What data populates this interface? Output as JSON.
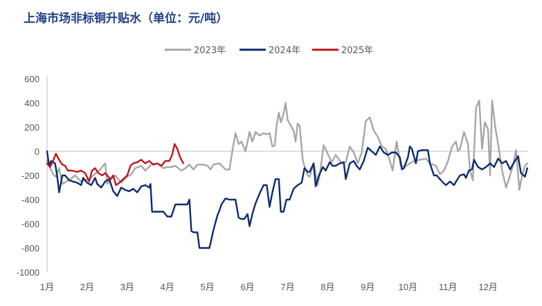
{
  "chart_data": {
    "type": "line",
    "title": "上海市场非标铜升贴水（单位：元/吨）",
    "xlabel": "",
    "ylabel": "",
    "ylim": [
      -1000,
      600
    ],
    "yticks": [
      "600",
      "400",
      "200",
      "0",
      "-200",
      "-400",
      "-600",
      "-800",
      "-1000"
    ],
    "xticks": [
      "1月",
      "2月",
      "3月",
      "4月",
      "5月",
      "6月",
      "7月",
      "8月",
      "9月",
      "10月",
      "11月",
      "12月"
    ],
    "grid": false,
    "legend_position": "top-center",
    "series": [
      {
        "name": "2023年",
        "color": "#a6a6a6",
        "points": [
          [
            1.0,
            -80
          ],
          [
            1.08,
            -140
          ],
          [
            1.15,
            -190
          ],
          [
            1.22,
            -210
          ],
          [
            1.3,
            -140
          ],
          [
            1.38,
            -270
          ],
          [
            1.48,
            -250
          ],
          [
            1.58,
            -230
          ],
          [
            1.7,
            -200
          ],
          [
            1.85,
            -250
          ],
          [
            1.95,
            -240
          ],
          [
            2.05,
            -230
          ],
          [
            2.15,
            -200
          ],
          [
            2.3,
            -160
          ],
          [
            2.45,
            -100
          ],
          [
            2.5,
            -270
          ],
          [
            2.6,
            -230
          ],
          [
            2.7,
            -200
          ],
          [
            2.85,
            -260
          ],
          [
            3.0,
            -210
          ],
          [
            3.1,
            -190
          ],
          [
            3.2,
            -140
          ],
          [
            3.35,
            -120
          ],
          [
            3.45,
            -160
          ],
          [
            3.6,
            -110
          ],
          [
            3.75,
            -100
          ],
          [
            3.9,
            -140
          ],
          [
            4.0,
            -130
          ],
          [
            4.1,
            -130
          ],
          [
            4.2,
            -120
          ],
          [
            4.35,
            -160
          ],
          [
            4.45,
            -140
          ],
          [
            4.55,
            -110
          ],
          [
            4.65,
            -150
          ],
          [
            4.75,
            -110
          ],
          [
            4.9,
            -110
          ],
          [
            5.0,
            -120
          ],
          [
            5.08,
            -150
          ],
          [
            5.15,
            -110
          ],
          [
            5.3,
            -100
          ],
          [
            5.45,
            -150
          ],
          [
            5.55,
            -150
          ],
          [
            5.62,
            0
          ],
          [
            5.7,
            150
          ],
          [
            5.78,
            60
          ],
          [
            5.85,
            80
          ],
          [
            5.95,
            0
          ],
          [
            6.0,
            80
          ],
          [
            6.05,
            160
          ],
          [
            6.12,
            80
          ],
          [
            6.2,
            160
          ],
          [
            6.3,
            130
          ],
          [
            6.4,
            150
          ],
          [
            6.48,
            140
          ],
          [
            6.55,
            150
          ],
          [
            6.62,
            40
          ],
          [
            6.68,
            50
          ],
          [
            6.72,
            200
          ],
          [
            6.78,
            320
          ],
          [
            6.83,
            240
          ],
          [
            6.9,
            310
          ],
          [
            6.95,
            400
          ],
          [
            7.0,
            260
          ],
          [
            7.15,
            170
          ],
          [
            7.2,
            80
          ],
          [
            7.25,
            230
          ],
          [
            7.3,
            210
          ],
          [
            7.38,
            -80
          ],
          [
            7.45,
            -150
          ],
          [
            7.5,
            -200
          ],
          [
            7.55,
            -210
          ],
          [
            7.65,
            -100
          ],
          [
            7.75,
            -280
          ],
          [
            7.8,
            -200
          ],
          [
            7.9,
            50
          ],
          [
            8.0,
            -20
          ],
          [
            8.1,
            -90
          ],
          [
            8.2,
            -30
          ],
          [
            8.35,
            -100
          ],
          [
            8.45,
            -90
          ],
          [
            8.55,
            40
          ],
          [
            8.65,
            -10
          ],
          [
            8.75,
            -100
          ],
          [
            8.85,
            -10
          ],
          [
            8.95,
            250
          ],
          [
            9.05,
            280
          ],
          [
            9.15,
            170
          ],
          [
            9.25,
            120
          ],
          [
            9.35,
            40
          ],
          [
            9.45,
            20
          ],
          [
            9.55,
            -80
          ],
          [
            9.62,
            -160
          ],
          [
            9.72,
            80
          ],
          [
            9.82,
            -120
          ],
          [
            9.92,
            -130
          ],
          [
            10.05,
            -100
          ],
          [
            10.15,
            -80
          ],
          [
            10.3,
            -70
          ],
          [
            10.45,
            -60
          ],
          [
            10.55,
            -100
          ],
          [
            10.7,
            -120
          ],
          [
            10.8,
            -190
          ],
          [
            10.9,
            -160
          ],
          [
            11.0,
            -80
          ],
          [
            11.1,
            40
          ],
          [
            11.2,
            80
          ],
          [
            11.25,
            0
          ],
          [
            11.3,
            20
          ],
          [
            11.4,
            160
          ],
          [
            11.5,
            60
          ],
          [
            11.55,
            -160
          ],
          [
            11.62,
            -240
          ],
          [
            11.7,
            360
          ],
          [
            11.78,
            420
          ],
          [
            11.85,
            20
          ],
          [
            11.92,
            240
          ],
          [
            12.0,
            180
          ],
          [
            12.05,
            -200
          ],
          [
            12.1,
            420
          ],
          [
            12.18,
            200
          ],
          [
            12.25,
            60
          ],
          [
            12.35,
            -160
          ],
          [
            12.45,
            -300
          ],
          [
            12.55,
            -200
          ],
          [
            12.62,
            -120
          ],
          [
            12.7,
            10
          ],
          [
            12.78,
            -320
          ],
          [
            12.85,
            -200
          ],
          [
            12.92,
            -120
          ],
          [
            12.98,
            -100
          ]
        ]
      },
      {
        "name": "2024年",
        "color": "#0b2b6f",
        "points": [
          [
            1.0,
            0
          ],
          [
            1.05,
            -120
          ],
          [
            1.1,
            -80
          ],
          [
            1.2,
            -100
          ],
          [
            1.25,
            -200
          ],
          [
            1.3,
            -340
          ],
          [
            1.38,
            -200
          ],
          [
            1.45,
            -200
          ],
          [
            1.55,
            -240
          ],
          [
            1.65,
            -250
          ],
          [
            1.75,
            -260
          ],
          [
            1.85,
            -280
          ],
          [
            1.9,
            -220
          ],
          [
            2.0,
            -260
          ],
          [
            2.1,
            -280
          ],
          [
            2.2,
            -220
          ],
          [
            2.25,
            -270
          ],
          [
            2.35,
            -300
          ],
          [
            2.45,
            -250
          ],
          [
            2.55,
            -230
          ],
          [
            2.65,
            -330
          ],
          [
            2.75,
            -370
          ],
          [
            2.85,
            -300
          ],
          [
            2.95,
            -320
          ],
          [
            3.05,
            -330
          ],
          [
            3.15,
            -310
          ],
          [
            3.25,
            -340
          ],
          [
            3.35,
            -290
          ],
          [
            3.45,
            -280
          ],
          [
            3.55,
            -300
          ],
          [
            3.58,
            -270
          ],
          [
            3.62,
            -500
          ],
          [
            3.75,
            -500
          ],
          [
            3.9,
            -500
          ],
          [
            4.0,
            -540
          ],
          [
            4.1,
            -540
          ],
          [
            4.2,
            -440
          ],
          [
            4.3,
            -440
          ],
          [
            4.4,
            -440
          ],
          [
            4.5,
            -440
          ],
          [
            4.55,
            -400
          ],
          [
            4.6,
            -660
          ],
          [
            4.65,
            -670
          ],
          [
            4.75,
            -670
          ],
          [
            4.8,
            -800
          ],
          [
            4.9,
            -800
          ],
          [
            5.05,
            -800
          ],
          [
            5.15,
            -650
          ],
          [
            5.25,
            -530
          ],
          [
            5.3,
            -490
          ],
          [
            5.35,
            -440
          ],
          [
            5.45,
            -390
          ],
          [
            5.55,
            -400
          ],
          [
            5.7,
            -400
          ],
          [
            5.78,
            -550
          ],
          [
            5.85,
            -560
          ],
          [
            5.92,
            -560
          ],
          [
            6.0,
            -520
          ],
          [
            6.05,
            -620
          ],
          [
            6.12,
            -520
          ],
          [
            6.2,
            -430
          ],
          [
            6.3,
            -350
          ],
          [
            6.4,
            -280
          ],
          [
            6.48,
            -280
          ],
          [
            6.55,
            -460
          ],
          [
            6.62,
            -340
          ],
          [
            6.7,
            -230
          ],
          [
            6.78,
            -230
          ],
          [
            6.83,
            -500
          ],
          [
            6.9,
            -500
          ],
          [
            6.97,
            -400
          ],
          [
            7.05,
            -400
          ],
          [
            7.15,
            -310
          ],
          [
            7.25,
            -280
          ],
          [
            7.35,
            -260
          ],
          [
            7.42,
            -140
          ],
          [
            7.5,
            -170
          ],
          [
            7.55,
            -170
          ],
          [
            7.65,
            -100
          ],
          [
            7.7,
            -290
          ],
          [
            7.78,
            -200
          ],
          [
            7.88,
            -130
          ],
          [
            7.95,
            -160
          ],
          [
            8.05,
            -90
          ],
          [
            8.12,
            -120
          ],
          [
            8.2,
            -120
          ],
          [
            8.3,
            -100
          ],
          [
            8.4,
            -90
          ],
          [
            8.45,
            -230
          ],
          [
            8.55,
            -100
          ],
          [
            8.65,
            -80
          ],
          [
            8.72,
            -120
          ],
          [
            8.8,
            -150
          ],
          [
            8.9,
            -80
          ],
          [
            9.0,
            30
          ],
          [
            9.1,
            0
          ],
          [
            9.2,
            -30
          ],
          [
            9.3,
            40
          ],
          [
            9.4,
            -10
          ],
          [
            9.5,
            -30
          ],
          [
            9.6,
            -10
          ],
          [
            9.7,
            -10
          ],
          [
            9.8,
            -50
          ],
          [
            9.85,
            -150
          ],
          [
            9.9,
            -140
          ],
          [
            10.0,
            -50
          ],
          [
            10.05,
            40
          ],
          [
            10.1,
            20
          ],
          [
            10.2,
            -100
          ],
          [
            10.25,
            0
          ],
          [
            10.35,
            10
          ],
          [
            10.45,
            10
          ],
          [
            10.5,
            10
          ],
          [
            10.55,
            -100
          ],
          [
            10.65,
            -200
          ],
          [
            10.72,
            -200
          ],
          [
            10.8,
            -230
          ],
          [
            10.88,
            -260
          ],
          [
            10.95,
            -280
          ],
          [
            11.05,
            -250
          ],
          [
            11.15,
            -280
          ],
          [
            11.22,
            -240
          ],
          [
            11.3,
            -200
          ],
          [
            11.4,
            -190
          ],
          [
            11.45,
            -220
          ],
          [
            11.52,
            -160
          ],
          [
            11.6,
            -150
          ],
          [
            11.65,
            -70
          ],
          [
            11.75,
            -130
          ],
          [
            11.85,
            -150
          ],
          [
            11.95,
            -130
          ],
          [
            12.05,
            -100
          ],
          [
            12.15,
            -130
          ],
          [
            12.25,
            -60
          ],
          [
            12.35,
            -100
          ],
          [
            12.45,
            -80
          ],
          [
            12.55,
            -150
          ],
          [
            12.65,
            -90
          ],
          [
            12.75,
            -40
          ],
          [
            12.82,
            -180
          ],
          [
            12.92,
            -210
          ],
          [
            12.98,
            -140
          ]
        ]
      },
      {
        "name": "2025年",
        "color": "#c0141c",
        "points": [
          [
            1.0,
            -100
          ],
          [
            1.07,
            -130
          ],
          [
            1.15,
            -80
          ],
          [
            1.22,
            -20
          ],
          [
            1.3,
            -70
          ],
          [
            1.38,
            -110
          ],
          [
            1.45,
            -120
          ],
          [
            1.52,
            -160
          ],
          [
            1.62,
            -160
          ],
          [
            1.75,
            -170
          ],
          [
            1.85,
            -160
          ],
          [
            1.95,
            -180
          ],
          [
            2.05,
            -250
          ],
          [
            2.12,
            -160
          ],
          [
            2.2,
            -140
          ],
          [
            2.28,
            -180
          ],
          [
            2.38,
            -200
          ],
          [
            2.45,
            -180
          ],
          [
            2.5,
            -200
          ],
          [
            2.58,
            -230
          ],
          [
            2.65,
            -200
          ],
          [
            2.72,
            -280
          ],
          [
            2.8,
            -260
          ],
          [
            2.9,
            -230
          ],
          [
            3.0,
            -200
          ],
          [
            3.08,
            -120
          ],
          [
            3.15,
            -100
          ],
          [
            3.25,
            -90
          ],
          [
            3.35,
            -70
          ],
          [
            3.45,
            -100
          ],
          [
            3.55,
            -80
          ],
          [
            3.65,
            -110
          ],
          [
            3.75,
            -100
          ],
          [
            3.85,
            -120
          ],
          [
            3.95,
            -80
          ],
          [
            4.05,
            -80
          ],
          [
            4.12,
            -30
          ],
          [
            4.18,
            60
          ],
          [
            4.25,
            20
          ],
          [
            4.32,
            -50
          ],
          [
            4.4,
            -100
          ]
        ]
      }
    ]
  }
}
